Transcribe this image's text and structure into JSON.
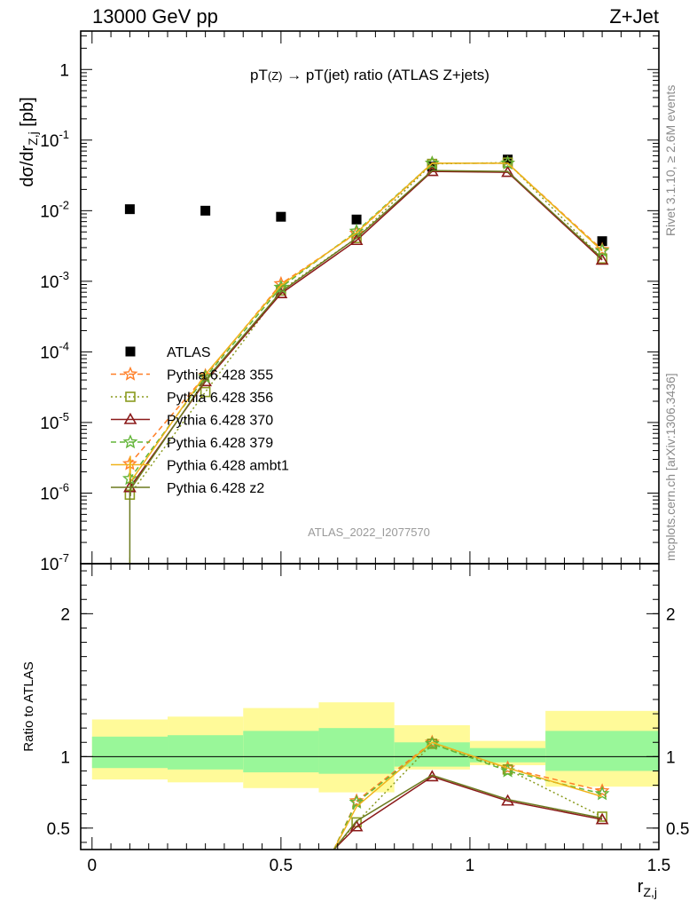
{
  "header": {
    "left": "13000 GeV pp",
    "right": "Z+Jet",
    "title": "pT(Z) → pT(jet) ratio (ATLAS Z+jets)",
    "watermark": "ATLAS_2022_I2077570",
    "side_top": "Rivet 3.1.10, ≥ 2.6M events",
    "side_bottom": "mcplots.cern.ch [arXiv:1306.3436]"
  },
  "chart_data": [
    {
      "type": "line",
      "panel": "main",
      "ylabel": "dσ/dr_{Z,j} [pb]",
      "yscale": "log",
      "ylim": [
        1e-07,
        3.5
      ],
      "xlim": [
        -0.03,
        1.5
      ],
      "y_ticks": [
        {
          "v": 1,
          "label": "1"
        },
        {
          "v": 0.1,
          "label": "10^-1"
        },
        {
          "v": 0.01,
          "label": "10^-2"
        },
        {
          "v": 0.001,
          "label": "10^-3"
        },
        {
          "v": 0.0001,
          "label": "10^-4"
        },
        {
          "v": 1e-05,
          "label": "10^-5"
        },
        {
          "v": 1e-06,
          "label": "10^-6"
        },
        {
          "v": 1e-07,
          "label": "10^-7"
        }
      ],
      "series": [
        {
          "name": "ATLAS",
          "color": "#000000",
          "marker": "square",
          "x": [
            0.1,
            0.3,
            0.5,
            0.7,
            0.9,
            1.1,
            1.35
          ],
          "y": [
            0.0105,
            0.01,
            0.0082,
            0.0075,
            0.042,
            0.053,
            0.0037
          ]
        },
        {
          "name": "Pythia 6.428 355",
          "color": "#ff7f27",
          "marker": "star",
          "dash": "6,4",
          "x": [
            0.1,
            0.3,
            0.5,
            0.7,
            0.9,
            1.1,
            1.35
          ],
          "y": [
            2.6e-06,
            4.6e-05,
            0.00092,
            0.0048,
            0.047,
            0.047,
            0.0028
          ]
        },
        {
          "name": "Pythia 6.428 356",
          "color": "#8b9b1f",
          "marker": "open-square",
          "dash": "2,3",
          "x": [
            0.1,
            0.3,
            0.5,
            0.7,
            0.9,
            1.1,
            1.35
          ],
          "y": [
            9.5e-07,
            2.7e-05,
            0.00074,
            0.0041,
            0.046,
            0.048,
            0.0021
          ]
        },
        {
          "name": "Pythia 6.428 370",
          "color": "#8b1a1a",
          "marker": "open-triangle",
          "dash": "",
          "x": [
            0.1,
            0.3,
            0.5,
            0.7,
            0.9,
            1.1,
            1.35
          ],
          "y": [
            1.2e-06,
            3.8e-05,
            0.00067,
            0.0038,
            0.036,
            0.035,
            0.002
          ]
        },
        {
          "name": "Pythia 6.428 379",
          "color": "#62b538",
          "marker": "star",
          "dash": "6,4",
          "x": [
            0.1,
            0.3,
            0.5,
            0.7,
            0.9,
            1.1,
            1.35
          ],
          "y": [
            1.6e-06,
            4.4e-05,
            0.00082,
            0.0051,
            0.047,
            0.047,
            0.0027
          ]
        },
        {
          "name": "Pythia 6.428 ambt1",
          "color": "#f0b31a",
          "marker": "none",
          "dash": "",
          "x": [
            0.1,
            0.3,
            0.5,
            0.7,
            0.9,
            1.1,
            1.35
          ],
          "y": [
            1.4e-06,
            4.8e-05,
            0.00088,
            0.0049,
            0.047,
            0.047,
            0.0027
          ]
        },
        {
          "name": "Pythia 6.428 z2",
          "color": "#6b7a1f",
          "marker": "none",
          "dash": "",
          "x": [
            0.1,
            0.3,
            0.5,
            0.7,
            0.9,
            1.1,
            1.35
          ],
          "y": [
            1.1e-06,
            4e-05,
            0.00071,
            0.0041,
            0.037,
            0.036,
            0.0021
          ]
        }
      ]
    },
    {
      "type": "line",
      "panel": "ratio",
      "ylabel": "Ratio to ATLAS",
      "xlabel": "r_{Z,j}",
      "ylim": [
        0.35,
        2.35
      ],
      "xlim": [
        -0.03,
        1.5
      ],
      "y_ticks": [
        "0.5",
        "1",
        "2"
      ],
      "x_ticks": [
        "0",
        "0.5",
        "1",
        "1.5"
      ],
      "bands": {
        "edges": [
          0.0,
          0.2,
          0.4,
          0.6,
          0.8,
          1.0,
          1.2,
          1.5
        ],
        "inner": [
          [
            0.92,
            1.14
          ],
          [
            0.91,
            1.15
          ],
          [
            0.89,
            1.18
          ],
          [
            0.88,
            1.2
          ],
          [
            0.93,
            1.1
          ],
          [
            0.96,
            1.06
          ],
          [
            0.9,
            1.18
          ]
        ],
        "outer": [
          [
            0.84,
            1.26
          ],
          [
            0.82,
            1.28
          ],
          [
            0.78,
            1.34
          ],
          [
            0.75,
            1.38
          ],
          [
            0.91,
            1.22
          ],
          [
            0.94,
            1.11
          ],
          [
            0.79,
            1.32
          ]
        ],
        "inner_color": "#99f799",
        "outer_color": "#fffa99"
      },
      "series": [
        {
          "name": "Pythia 6.428 355",
          "x": [
            0.7,
            0.9,
            1.1,
            1.35
          ],
          "y": [
            0.69,
            1.1,
            0.92,
            0.76
          ]
        },
        {
          "name": "Pythia 6.428 356",
          "x": [
            0.7,
            0.9,
            1.1,
            1.35
          ],
          "y": [
            0.54,
            1.09,
            0.91,
            0.58
          ]
        },
        {
          "name": "Pythia 6.428 370",
          "x": [
            0.7,
            0.9,
            1.1,
            1.35
          ],
          "y": [
            0.51,
            0.86,
            0.69,
            0.56
          ]
        },
        {
          "name": "Pythia 6.428 379",
          "x": [
            0.7,
            0.9,
            1.1,
            1.35
          ],
          "y": [
            0.68,
            1.09,
            0.9,
            0.74
          ]
        },
        {
          "name": "Pythia 6.428 ambt1",
          "x": [
            0.7,
            0.9,
            1.1,
            1.35
          ],
          "y": [
            0.65,
            1.1,
            0.92,
            0.72
          ]
        },
        {
          "name": "Pythia 6.428 z2",
          "x": [
            0.7,
            0.9,
            1.1,
            1.35
          ],
          "y": [
            0.55,
            0.87,
            0.7,
            0.57
          ]
        }
      ]
    }
  ]
}
